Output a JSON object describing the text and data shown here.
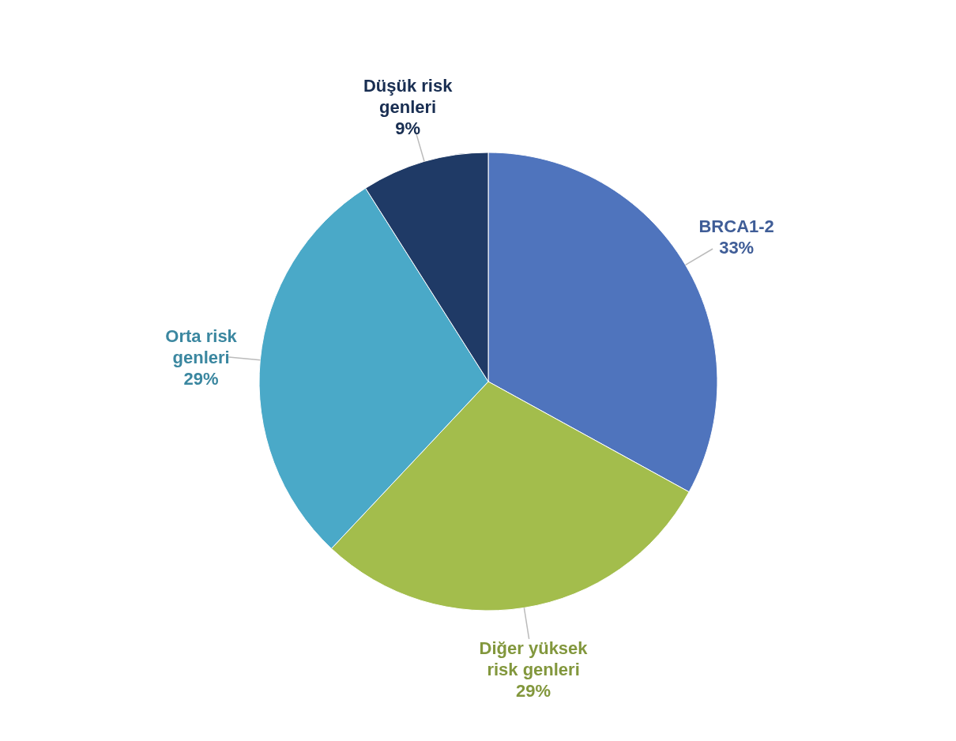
{
  "chart_data": {
    "type": "pie",
    "categories": [
      "BRCA1-2",
      "Diğer yüksek risk genleri",
      "Orta risk genleri",
      "Düşük risk genleri"
    ],
    "values": [
      33,
      29,
      29,
      9
    ],
    "value_labels": [
      "33%",
      "29%",
      "29%",
      "9%"
    ],
    "colors": [
      "#4f74bd",
      "#a3bd4c",
      "#4aa9c8",
      "#1f3a66"
    ],
    "legend": false
  }
}
